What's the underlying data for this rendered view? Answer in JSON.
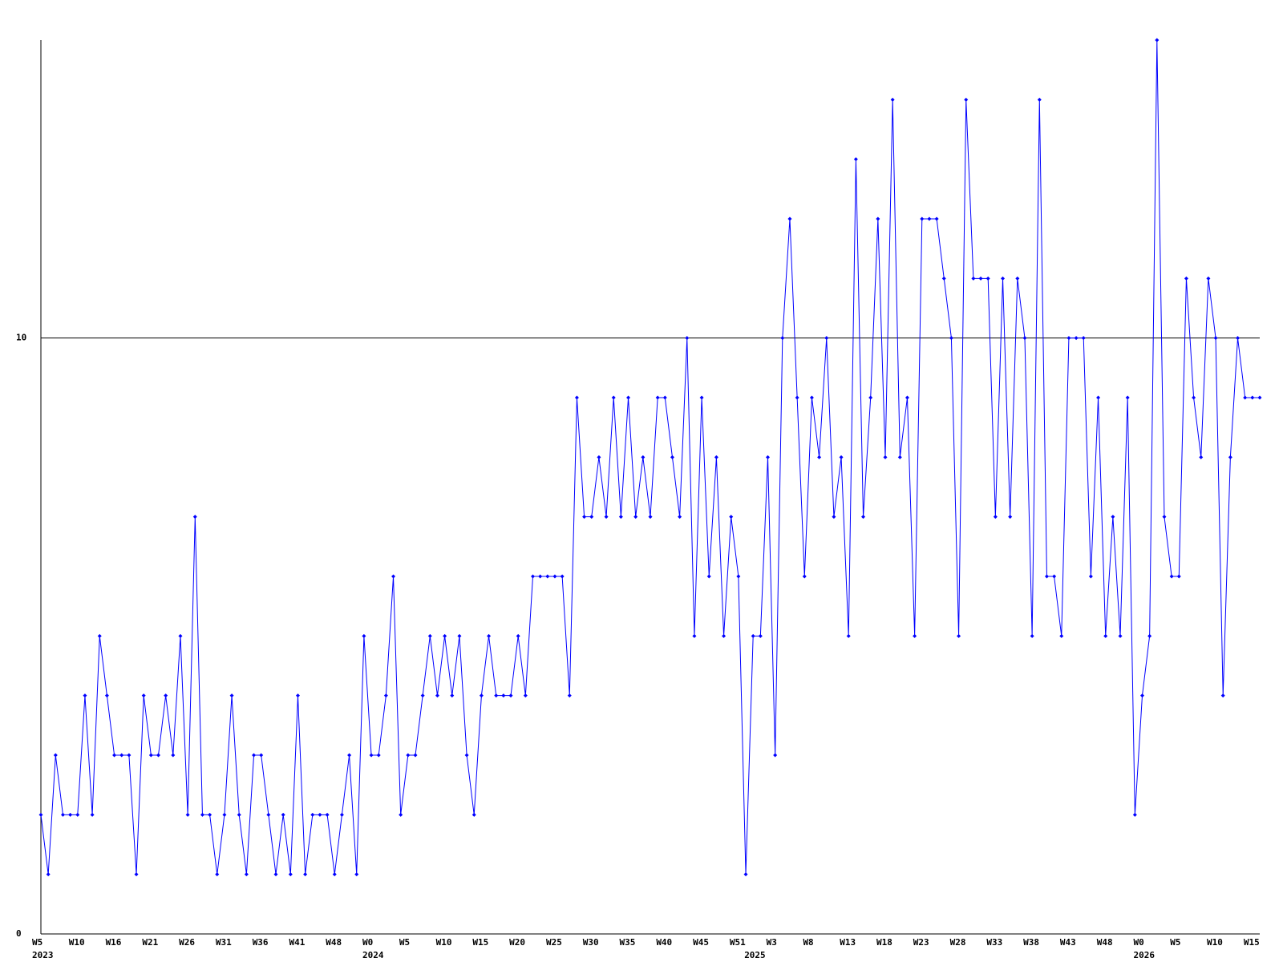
{
  "chart_data": {
    "type": "line",
    "categories": [
      "W5",
      null,
      null,
      null,
      null,
      "W10",
      null,
      null,
      null,
      null,
      "W16",
      null,
      null,
      null,
      null,
      "W21",
      null,
      null,
      null,
      null,
      "W26",
      null,
      null,
      null,
      null,
      "W31",
      null,
      null,
      null,
      null,
      "W36",
      null,
      null,
      null,
      null,
      "W41",
      null,
      null,
      null,
      null,
      "W48",
      null,
      null,
      null,
      null,
      "W0",
      null,
      null,
      null,
      null,
      "W5",
      null,
      null,
      null,
      null,
      "W10",
      null,
      null,
      null,
      null,
      "W15",
      null,
      null,
      null,
      null,
      "W20",
      null,
      null,
      null,
      null,
      "W25",
      null,
      null,
      null,
      null,
      "W30",
      null,
      null,
      null,
      null,
      "W35",
      null,
      null,
      null,
      null,
      "W40",
      null,
      null,
      null,
      null,
      "W45",
      null,
      null,
      null,
      null,
      "W51",
      null,
      null,
      null,
      null,
      "W3",
      null,
      null,
      null,
      null,
      "W8",
      null,
      null,
      null,
      null,
      "W13",
      null,
      null,
      null,
      null,
      "W18",
      null,
      null,
      null,
      null,
      "W23",
      null,
      null,
      null,
      null,
      "W28",
      null,
      null,
      null,
      null,
      "W33",
      null,
      null,
      null,
      null,
      "W38",
      null,
      null,
      null,
      null,
      "W43",
      null,
      null,
      null,
      null,
      "W48",
      null,
      null,
      null,
      null,
      "W0",
      null,
      null,
      null,
      null,
      "W5",
      null,
      null,
      null,
      null,
      "W10",
      null,
      null,
      null,
      null,
      "W15",
      null
    ],
    "category_years": [
      "2023",
      null,
      null,
      null,
      null,
      null,
      null,
      null,
      null,
      null,
      null,
      null,
      null,
      null,
      null,
      null,
      null,
      null,
      null,
      null,
      null,
      null,
      null,
      null,
      null,
      null,
      null,
      null,
      null,
      null,
      null,
      null,
      null,
      null,
      null,
      null,
      null,
      null,
      null,
      null,
      null,
      null,
      null,
      null,
      null,
      "2024",
      null,
      null,
      null,
      null,
      null,
      null,
      null,
      null,
      null,
      null,
      null,
      null,
      null,
      null,
      null,
      null,
      null,
      null,
      null,
      null,
      null,
      null,
      null,
      null,
      null,
      null,
      null,
      null,
      null,
      null,
      null,
      null,
      null,
      null,
      null,
      null,
      null,
      null,
      null,
      null,
      null,
      null,
      null,
      null,
      null,
      null,
      null,
      null,
      null,
      null,
      null,
      "2025",
      null,
      null,
      null,
      null,
      null,
      null,
      null,
      null,
      null,
      null,
      null,
      null,
      null,
      null,
      null,
      null,
      null,
      null,
      null,
      null,
      null,
      null,
      null,
      null,
      null,
      null,
      null,
      null,
      null,
      null,
      null,
      null,
      null,
      null,
      null,
      null,
      null,
      null,
      null,
      null,
      null,
      null,
      null,
      null,
      null,
      null,
      null,
      null,
      null,
      null,
      null,
      null,
      "2026",
      null,
      null,
      null,
      null,
      null,
      null,
      null,
      null,
      null,
      null,
      null,
      null,
      null,
      null,
      null,
      null
    ],
    "values": [
      2,
      1,
      3,
      2,
      2,
      2,
      4,
      2,
      5,
      4,
      3,
      3,
      3,
      1,
      4,
      3,
      3,
      4,
      3,
      5,
      2,
      7,
      2,
      2,
      1,
      2,
      4,
      2,
      1,
      3,
      3,
      2,
      1,
      2,
      1,
      4,
      1,
      2,
      2,
      2,
      1,
      2,
      3,
      1,
      5,
      3,
      3,
      4,
      6,
      2,
      3,
      3,
      4,
      5,
      4,
      5,
      4,
      5,
      3,
      2,
      4,
      5,
      4,
      4,
      4,
      5,
      4,
      6,
      6,
      6,
      6,
      6,
      4,
      9,
      7,
      7,
      8,
      7,
      9,
      7,
      9,
      7,
      8,
      7,
      9,
      9,
      8,
      7,
      10,
      5,
      9,
      6,
      8,
      5,
      7,
      6,
      1,
      5,
      5,
      8,
      3,
      10,
      12,
      9,
      6,
      9,
      8,
      10,
      7,
      8,
      5,
      13,
      7,
      9,
      12,
      8,
      14,
      8,
      9,
      5,
      12,
      12,
      12,
      11,
      10,
      5,
      14,
      11,
      11,
      11,
      7,
      11,
      7,
      11,
      10,
      5,
      14,
      6,
      6,
      5,
      10,
      10,
      10,
      6,
      9,
      5,
      7,
      5,
      9,
      2,
      4,
      5,
      15,
      7,
      6,
      6,
      11,
      9,
      8,
      11,
      10,
      4,
      8,
      10,
      9,
      9,
      9
    ],
    "color": "#0000ff",
    "ylim": [
      0,
      15
    ],
    "yticks": [
      0,
      10
    ],
    "grid": true
  }
}
